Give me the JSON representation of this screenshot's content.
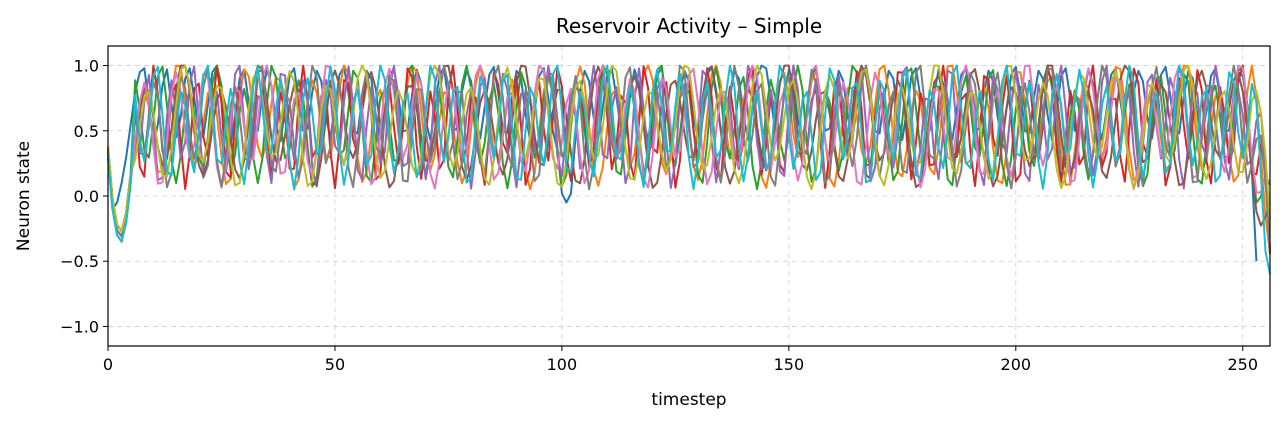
{
  "chart_data": {
    "type": "line",
    "title": "Reservoir Activity – Simple",
    "xlabel": "timestep",
    "ylabel": "Neuron state",
    "xlim": [
      0,
      256
    ],
    "ylim": [
      -1.15,
      1.15
    ],
    "xticks": [
      0,
      50,
      100,
      150,
      200,
      250
    ],
    "xtick_labels": [
      "0",
      "50",
      "100",
      "150",
      "200",
      "250"
    ],
    "yticks": [
      -1.0,
      -0.5,
      0.0,
      0.5,
      1.0
    ],
    "ytick_labels": [
      "−1.0",
      "−0.5",
      "0.0",
      "0.5",
      "1.0"
    ],
    "grid": true,
    "series": [
      {
        "color": "#1f77b4",
        "period": 5.3,
        "phase": 0.3,
        "values": [
          0.35,
          -0.1,
          -0.05,
          0.1,
          0.3,
          0.55,
          0.8,
          0.95,
          0.98,
          0.72,
          0.4,
          0.55,
          0.85,
          0.97,
          0.7,
          0.45,
          0.6,
          0.9,
          0.98,
          0.75,
          0.5,
          0.45,
          0.7,
          0.95,
          1.0,
          0.8,
          0.55,
          0.4,
          0.62,
          0.9,
          0.97,
          0.72,
          0.48,
          0.5,
          0.78,
          0.97,
          0.85,
          0.55,
          0.42,
          0.65,
          0.92,
          0.98,
          0.74,
          0.5,
          0.52,
          0.8,
          0.96,
          0.88,
          0.6,
          0.45,
          0.68,
          0.93,
          0.99,
          0.78,
          0.5,
          0.48,
          0.75,
          0.96,
          0.9,
          0.62,
          0.44,
          0.66,
          0.92,
          0.98,
          0.76,
          0.5,
          0.5,
          0.78,
          0.97,
          0.86,
          0.58,
          0.43,
          0.66,
          0.93,
          0.98,
          0.74,
          0.5,
          0.52,
          0.8,
          0.96,
          0.88,
          0.6,
          0.44,
          0.68,
          0.93,
          0.99,
          0.78,
          0.5,
          0.48,
          0.76,
          0.96,
          0.9,
          0.62,
          0.43,
          0.66,
          0.92,
          0.98,
          0.75,
          0.5,
          0.35,
          0.02,
          -0.05,
          0.02,
          0.45,
          0.8,
          0.96,
          0.88,
          0.6,
          0.44,
          0.68,
          0.93,
          0.98,
          0.76,
          0.5,
          0.5,
          0.78,
          0.97,
          0.86,
          0.58,
          0.43,
          0.66,
          0.93,
          0.98,
          0.74,
          0.5,
          0.52,
          0.8,
          0.96,
          0.88,
          0.6,
          0.44,
          0.68,
          0.93,
          0.99,
          0.78,
          0.5,
          0.48,
          0.76,
          0.96,
          0.9,
          0.62,
          0.43,
          0.66,
          0.92,
          1.0,
          0.98,
          0.75,
          0.5,
          0.5,
          0.78,
          0.97,
          0.86,
          0.58,
          0.43,
          0.66,
          0.93,
          0.98,
          0.74,
          0.5,
          0.52,
          0.8,
          0.96,
          0.88,
          0.6,
          0.44,
          0.68,
          0.93,
          0.99,
          0.78,
          0.5,
          0.48,
          0.76,
          0.96,
          0.9,
          0.62,
          0.43,
          0.66,
          0.92,
          0.98,
          0.75,
          0.5,
          0.5,
          0.78,
          0.97,
          0.86,
          0.58,
          0.43,
          0.66,
          0.93,
          0.98,
          0.74,
          0.5,
          0.52,
          0.8,
          0.96,
          0.88,
          0.6,
          0.44,
          0.68,
          0.93,
          0.99,
          0.78,
          0.5,
          0.48,
          0.76,
          0.96,
          0.9,
          0.62,
          0.43,
          0.66,
          0.92,
          0.98,
          0.75,
          0.5,
          0.5,
          0.78,
          0.97,
          0.86,
          0.58,
          0.43,
          0.66,
          0.93,
          0.98,
          0.74,
          0.5,
          0.52,
          0.8,
          0.96,
          0.88,
          0.6,
          0.44,
          0.68,
          0.93,
          0.99,
          0.78,
          0.5,
          0.48,
          0.76,
          0.96,
          0.9,
          0.62,
          0.43,
          0.66,
          0.92,
          0.98,
          0.75,
          0.5,
          0.5,
          0.78,
          0.95,
          0.92,
          0.7,
          0.2,
          -0.5
        ]
      },
      {
        "color": "#ff7f0e",
        "period": 7.4,
        "phase": 1.1,
        "values": []
      },
      {
        "color": "#2ca02c",
        "period": 6.1,
        "phase": 2.0,
        "values": []
      },
      {
        "color": "#d62728",
        "period": 4.7,
        "phase": 0.7,
        "values": []
      },
      {
        "color": "#9467bd",
        "period": 4.9,
        "phase": 2.6,
        "values": []
      },
      {
        "color": "#8c564b",
        "period": 8.3,
        "phase": 1.6,
        "values": []
      },
      {
        "color": "#e377c2",
        "period": 6.7,
        "phase": 0.2,
        "values": []
      },
      {
        "color": "#7f7f7f",
        "period": 5.8,
        "phase": 2.9,
        "values": []
      },
      {
        "color": "#bcbd22",
        "period": 7.9,
        "phase": 0.9,
        "values": []
      },
      {
        "color": "#17becf",
        "period": 5.5,
        "phase": 1.9,
        "values": []
      }
    ]
  }
}
